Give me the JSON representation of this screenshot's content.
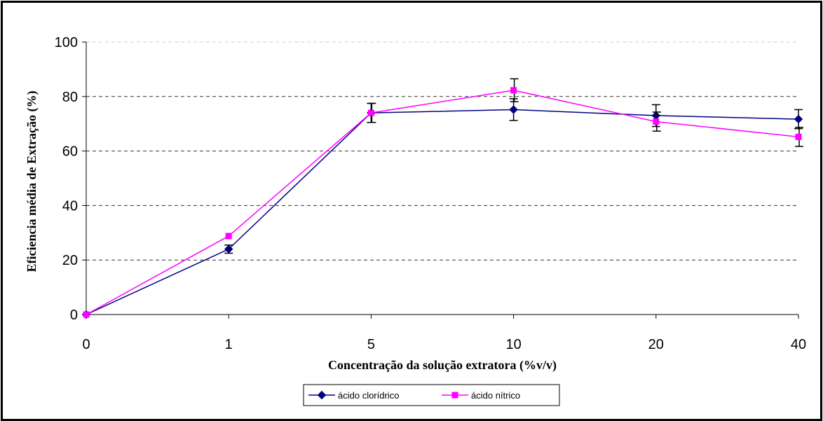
{
  "chart_data": {
    "type": "line",
    "categories": [
      "0",
      "1",
      "5",
      "10",
      "20",
      "40"
    ],
    "xlabel": "Concentração da solução extratora (%v/v)",
    "ylabel": "Eficiencia média de Extração (%)",
    "ylim": [
      0,
      100
    ],
    "yticks": [
      0,
      20,
      40,
      60,
      80,
      100
    ],
    "grid": "horizontal dashed",
    "legend_position": "bottom",
    "series": [
      {
        "name": "ácido clorídrico",
        "values": [
          0,
          24,
          74,
          75.2,
          73,
          71.7
        ],
        "errors": [
          0,
          1.5,
          3.5,
          4,
          4,
          3.5
        ],
        "color": "#000080",
        "marker": "diamond"
      },
      {
        "name": "ácido nítrico",
        "values": [
          0,
          28.8,
          74,
          82.3,
          70.8,
          65.2
        ],
        "errors": [
          0,
          0,
          3.5,
          4.2,
          3.5,
          3.5
        ],
        "color": "#FF00FF",
        "marker": "square"
      }
    ]
  }
}
